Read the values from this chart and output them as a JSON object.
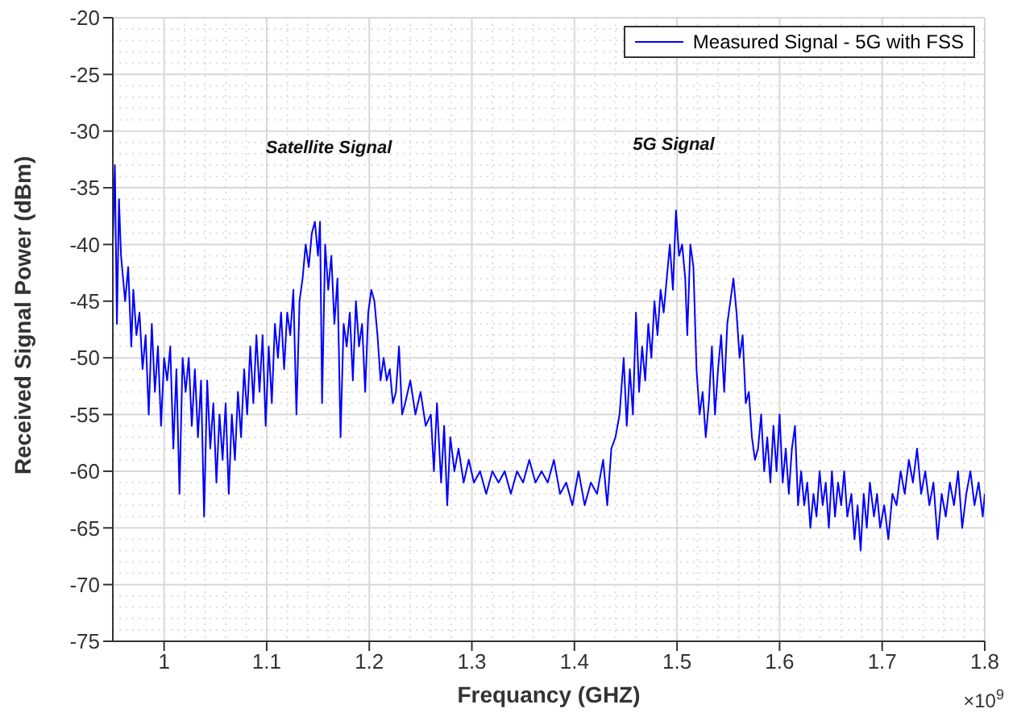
{
  "chart_data": {
    "type": "line",
    "xlabel": "Frequancy  (GHZ)",
    "ylabel": "Received Signal Power (dBm)",
    "xlim": [
      0.95,
      1.8
    ],
    "xticks": [
      1,
      1.1,
      1.2,
      1.3,
      1.4,
      1.5,
      1.6,
      1.7,
      1.8
    ],
    "ylim": [
      -75,
      -20
    ],
    "yticks": [
      -75,
      -70,
      -65,
      -60,
      -55,
      -50,
      -45,
      -40,
      -35,
      -30,
      -25,
      -20
    ],
    "grid": true,
    "legend": "top right",
    "marker": "none",
    "line_style": "solid",
    "annotations": [
      "Satellite Signal",
      "5G Signal",
      "×10$^{9}$"
    ],
    "series": [
      {
        "name": "Measured Signal - 5G with FSS",
        "color": "#0000ff",
        "x": [
          0.95,
          0.952,
          0.954,
          0.956,
          0.958,
          0.962,
          0.965,
          0.968,
          0.97,
          0.973,
          0.976,
          0.979,
          0.982,
          0.985,
          0.988,
          0.991,
          0.994,
          0.997,
          1.0,
          1.003,
          1.006,
          1.009,
          1.012,
          1.015,
          1.018,
          1.021,
          1.024,
          1.027,
          1.03,
          1.033,
          1.036,
          1.039,
          1.042,
          1.045,
          1.048,
          1.051,
          1.054,
          1.057,
          1.06,
          1.063,
          1.066,
          1.069,
          1.072,
          1.075,
          1.078,
          1.081,
          1.084,
          1.087,
          1.09,
          1.093,
          1.096,
          1.099,
          1.102,
          1.105,
          1.108,
          1.111,
          1.114,
          1.117,
          1.12,
          1.123,
          1.126,
          1.129,
          1.132,
          1.135,
          1.138,
          1.141,
          1.144,
          1.147,
          1.15,
          1.152,
          1.154,
          1.157,
          1.16,
          1.163,
          1.166,
          1.169,
          1.172,
          1.175,
          1.178,
          1.181,
          1.184,
          1.187,
          1.19,
          1.193,
          1.196,
          1.199,
          1.202,
          1.205,
          1.208,
          1.211,
          1.214,
          1.217,
          1.22,
          1.223,
          1.226,
          1.229,
          1.232,
          1.235,
          1.24,
          1.245,
          1.25,
          1.255,
          1.26,
          1.263,
          1.266,
          1.27,
          1.273,
          1.276,
          1.279,
          1.283,
          1.287,
          1.292,
          1.297,
          1.302,
          1.308,
          1.314,
          1.32,
          1.326,
          1.332,
          1.338,
          1.344,
          1.35,
          1.356,
          1.362,
          1.368,
          1.374,
          1.38,
          1.386,
          1.392,
          1.398,
          1.404,
          1.41,
          1.416,
          1.422,
          1.428,
          1.432,
          1.436,
          1.44,
          1.444,
          1.448,
          1.451,
          1.454,
          1.457,
          1.46,
          1.463,
          1.466,
          1.469,
          1.472,
          1.475,
          1.478,
          1.481,
          1.484,
          1.487,
          1.49,
          1.493,
          1.496,
          1.499,
          1.502,
          1.505,
          1.508,
          1.51,
          1.513,
          1.516,
          1.519,
          1.522,
          1.525,
          1.528,
          1.531,
          1.534,
          1.537,
          1.54,
          1.543,
          1.546,
          1.549,
          1.552,
          1.555,
          1.558,
          1.561,
          1.564,
          1.567,
          1.57,
          1.573,
          1.576,
          1.579,
          1.582,
          1.585,
          1.588,
          1.591,
          1.594,
          1.597,
          1.6,
          1.603,
          1.606,
          1.609,
          1.612,
          1.615,
          1.618,
          1.621,
          1.624,
          1.627,
          1.63,
          1.633,
          1.636,
          1.639,
          1.642,
          1.645,
          1.648,
          1.651,
          1.654,
          1.657,
          1.66,
          1.663,
          1.666,
          1.67,
          1.673,
          1.676,
          1.679,
          1.682,
          1.685,
          1.688,
          1.692,
          1.695,
          1.698,
          1.702,
          1.706,
          1.71,
          1.714,
          1.718,
          1.722,
          1.726,
          1.73,
          1.734,
          1.738,
          1.742,
          1.746,
          1.75,
          1.754,
          1.758,
          1.762,
          1.766,
          1.77,
          1.774,
          1.778,
          1.782,
          1.786,
          1.79,
          1.794,
          1.798,
          1.8
        ],
        "values": [
          -40,
          -33,
          -47,
          -36,
          -41,
          -45,
          -42,
          -49,
          -44,
          -48,
          -46,
          -51,
          -48,
          -55,
          -47,
          -53,
          -49,
          -56,
          -50,
          -52,
          -49,
          -58,
          -51,
          -62,
          -50,
          -53,
          -50,
          -56,
          -51,
          -57,
          -52,
          -64,
          -52,
          -58,
          -54,
          -61,
          -55,
          -59,
          -54,
          -62,
          -55,
          -59,
          -53,
          -57,
          -51,
          -55,
          -49,
          -54,
          -48,
          -53,
          -48,
          -56,
          -49,
          -54,
          -47,
          -50,
          -46,
          -51,
          -46,
          -48,
          -44,
          -55,
          -45,
          -43,
          -40,
          -42,
          -39,
          -38,
          -41,
          -38,
          -54,
          -40,
          -44,
          -41,
          -47,
          -43,
          -57,
          -47,
          -49,
          -46,
          -52,
          -45,
          -49,
          -47,
          -53,
          -46,
          -44,
          -45,
          -48,
          -52,
          -50,
          -52,
          -51,
          -54,
          -53,
          -49,
          -55,
          -54,
          -52,
          -55,
          -53,
          -56,
          -55,
          -60,
          -54,
          -61,
          -56,
          -63,
          -57,
          -60,
          -58,
          -61,
          -59,
          -61,
          -60,
          -62,
          -60,
          -61,
          -60,
          -62,
          -60,
          -61,
          -59,
          -61,
          -60,
          -61,
          -59,
          -62,
          -61,
          -63,
          -60,
          -63,
          -61,
          -62,
          -59,
          -63,
          -58,
          -57,
          -55,
          -50,
          -56,
          -51,
          -55,
          -46,
          -53,
          -49,
          -52,
          -47,
          -50,
          -45,
          -48,
          -44,
          -46,
          -43,
          -40,
          -44,
          -37,
          -41,
          -40,
          -43,
          -48,
          -40,
          -42,
          -51,
          -55,
          -53,
          -57,
          -54,
          -49,
          -55,
          -51,
          -48,
          -53,
          -47,
          -45,
          -43,
          -46,
          -50,
          -48,
          -54,
          -53,
          -57,
          -59,
          -58,
          -55,
          -60,
          -57,
          -61,
          -56,
          -60,
          -55,
          -61,
          -58,
          -62,
          -58,
          -56,
          -63,
          -60,
          -63,
          -61,
          -65,
          -62,
          -64,
          -60,
          -63,
          -61,
          -65,
          -60,
          -64,
          -61,
          -63,
          -60,
          -64,
          -62,
          -66,
          -63,
          -67,
          -62,
          -65,
          -61,
          -64,
          -62,
          -65,
          -63,
          -66,
          -62,
          -63,
          -60,
          -62,
          -59,
          -61,
          -58,
          -62,
          -60,
          -63,
          -61,
          -66,
          -62,
          -64,
          -61,
          -63,
          -60,
          -65,
          -62,
          -60,
          -63,
          -61,
          -64,
          -62
        ]
      }
    ]
  }
}
